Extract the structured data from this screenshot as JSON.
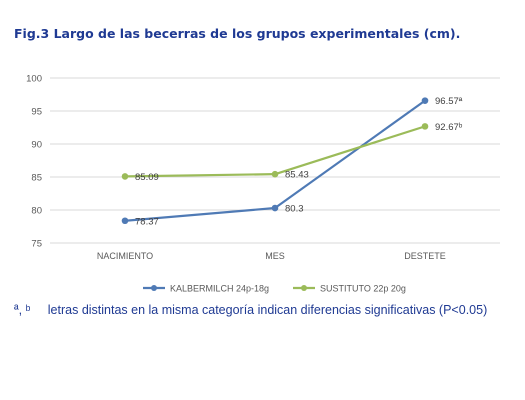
{
  "figure": {
    "title": "Fig.3 Largo de las becerras de los grupos experimentales (cm).",
    "footnote_marks": "ª, ᵇ",
    "footnote_text": "letras distintas en la misma categoría indican diferencias significativas (P<0.05)"
  },
  "colors": {
    "title": "#1f3a93",
    "series_1": "#4f7ab5",
    "series_2": "#9bbb59",
    "grid": "#d9d9d9",
    "axis_text": "#595959"
  },
  "chart_data": {
    "type": "line",
    "categories": [
      "NACIMIENTO",
      "MES",
      "DESTETE"
    ],
    "ylim": [
      75,
      100
    ],
    "yticks": [
      75,
      80,
      85,
      90,
      95,
      100
    ],
    "grid": true,
    "legend_position": "bottom",
    "series": [
      {
        "name": "KALBERMILCH 24p-18g",
        "values": [
          78.37,
          80.3,
          96.57
        ],
        "labels": [
          "78.37",
          "80.3",
          "96.57ª"
        ],
        "color": "#4f7ab5",
        "marker": "circle"
      },
      {
        "name": "SUSTITUTO 22p 20g",
        "values": [
          85.09,
          85.43,
          92.67
        ],
        "labels": [
          "85.09",
          "85.43",
          "92.67ᵇ"
        ],
        "color": "#9bbb59",
        "marker": "circle"
      }
    ]
  }
}
